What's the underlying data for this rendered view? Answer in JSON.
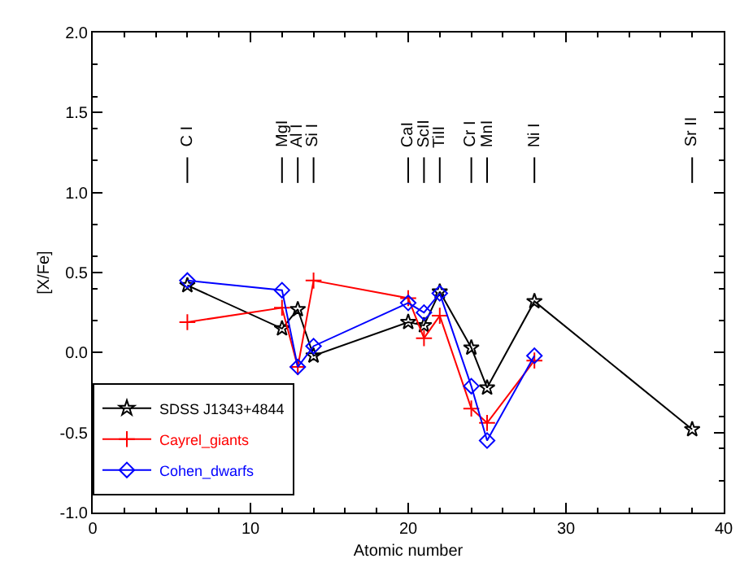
{
  "chart_data": {
    "type": "line",
    "xlabel": "Atomic number",
    "ylabel": "[X/Fe]",
    "xlim": [
      0,
      40
    ],
    "xticks": [
      0,
      10,
      20,
      30,
      40
    ],
    "ylim": [
      -1.0,
      2.0
    ],
    "yticks": [
      {
        "value": -1.0,
        "label": "-1.0"
      },
      {
        "value": -0.5,
        "label": "-0.5"
      },
      {
        "value": 0.0,
        "label": "0.0"
      },
      {
        "value": 0.5,
        "label": "0.5"
      },
      {
        "value": 1.0,
        "label": "1.0"
      },
      {
        "value": 1.5,
        "label": "1.5"
      },
      {
        "value": 2.0,
        "label": "2.0"
      }
    ],
    "legend": "bottom left",
    "line_style": "solid",
    "series": [
      {
        "name": "SDSS J1343+4844",
        "color": "#000000",
        "marker": "star",
        "x": [
          6,
          12,
          13,
          14,
          20,
          21,
          22,
          24,
          25,
          28,
          38
        ],
        "values": [
          0.42,
          0.15,
          0.27,
          -0.02,
          0.19,
          0.17,
          0.38,
          0.03,
          -0.22,
          0.32,
          -0.48
        ]
      },
      {
        "name": "Cayrel_giants",
        "color": "#ff0000",
        "marker": "cross",
        "x": [
          6,
          12,
          13,
          14,
          20,
          21,
          22,
          24,
          25,
          28
        ],
        "values": [
          0.19,
          0.28,
          -0.09,
          0.45,
          0.34,
          0.09,
          0.23,
          -0.35,
          -0.44,
          -0.05
        ]
      },
      {
        "name": "Cohen_dwarfs",
        "color": "#0000ff",
        "marker": "diamond",
        "x": [
          6,
          12,
          13,
          14,
          20,
          21,
          22,
          24,
          25,
          28
        ],
        "values": [
          0.45,
          0.39,
          -0.09,
          0.04,
          0.31,
          0.25,
          0.37,
          -0.21,
          -0.55,
          -0.02
        ]
      },
      {
        "color": "#000000",
        "marker": "none",
        "x": [
          6,
          6,
          null,
          12,
          12,
          null,
          13,
          13,
          null,
          14,
          14,
          null,
          20,
          20,
          null,
          21,
          21,
          null,
          22,
          22,
          null,
          24,
          24,
          null,
          25,
          25,
          null,
          28,
          28,
          null,
          38,
          38
        ],
        "values": [
          1.06,
          1.22,
          null,
          1.06,
          1.22,
          null,
          1.06,
          1.22,
          null,
          1.06,
          1.22,
          null,
          1.06,
          1.22,
          null,
          1.06,
          1.22,
          null,
          1.06,
          1.22,
          null,
          1.06,
          1.22,
          null,
          1.06,
          1.22,
          null,
          1.06,
          1.22,
          null,
          1.06,
          1.22
        ]
      }
    ],
    "annotations": [
      {
        "text": "C I",
        "x": 6,
        "y": 1.14
      },
      {
        "text": "MgI",
        "x": 12,
        "y": 1.14
      },
      {
        "text": "Al I",
        "x": 13,
        "y": 1.14
      },
      {
        "text": "Si I",
        "x": 14,
        "y": 1.14
      },
      {
        "text": "CaI",
        "x": 20,
        "y": 1.14
      },
      {
        "text": "ScII",
        "x": 21,
        "y": 1.14
      },
      {
        "text": "TiII",
        "x": 22,
        "y": 1.14
      },
      {
        "text": "Cr I",
        "x": 24,
        "y": 1.14
      },
      {
        "text": "MnI",
        "x": 25,
        "y": 1.14
      },
      {
        "text": "Ni I",
        "x": 28,
        "y": 1.14
      },
      {
        "text": "Sr II",
        "x": 38,
        "y": 1.14
      }
    ]
  }
}
